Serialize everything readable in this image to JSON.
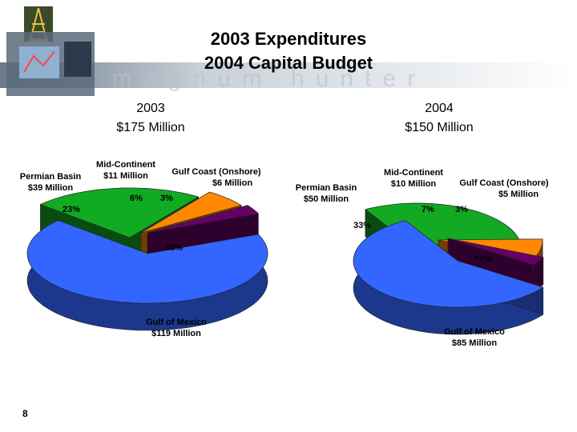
{
  "slide": {
    "title_line1": "2003 Expenditures",
    "title_line2": "2004 Capital Budget",
    "watermark": "magnum hunter",
    "page_number": "8"
  },
  "chart_data": [
    {
      "type": "pie",
      "title_line1": "2003",
      "title_line2": "$175 Million",
      "slices": [
        {
          "name": "Gulf of Mexico",
          "amount": "$119 Million",
          "value": 68,
          "label": "68%",
          "color": "#3366ff"
        },
        {
          "name": "Permian Basin",
          "amount": "$39 Million",
          "value": 23,
          "label": "23%",
          "color": "#11aa22"
        },
        {
          "name": "Mid-Continent",
          "amount": "$11 Million",
          "value": 6,
          "label": "6%",
          "color": "#ff8800"
        },
        {
          "name": "Gulf Coast (Onshore)",
          "amount": "$6 Million",
          "value": 3,
          "label": "3%",
          "color": "#660066"
        }
      ]
    },
    {
      "type": "pie",
      "title_line1": "2004",
      "title_line2": "$150 Million",
      "slices": [
        {
          "name": "Gulf of Mexico",
          "amount": "$85 Million",
          "value": 57,
          "label": "57%",
          "color": "#3366ff"
        },
        {
          "name": "Permian Basin",
          "amount": "$50 Million",
          "value": 33,
          "label": "33%",
          "color": "#11aa22"
        },
        {
          "name": "Mid-Continent",
          "amount": "$10 Million",
          "value": 7,
          "label": "7%",
          "color": "#ff8800"
        },
        {
          "name": "Gulf Coast (Onshore)",
          "amount": "$5 Million",
          "value": 3,
          "label": "3%",
          "color": "#660066"
        }
      ]
    }
  ]
}
